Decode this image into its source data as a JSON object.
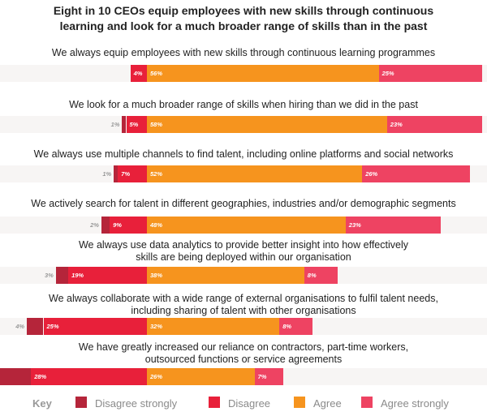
{
  "title_line1": "Eight in 10 CEOs equip employees with new skills through continuous",
  "title_line2": "learning and look for a much broader range of skills than in the past",
  "colors": {
    "disagree_strongly": "#b5253a",
    "disagree": "#e8203a",
    "agree": "#f6941e",
    "agree_strongly": "#ee4362",
    "track": "#f7f5f4"
  },
  "legend": {
    "title": "Key",
    "items": [
      {
        "key": "disagree_strongly",
        "label": "Disagree strongly"
      },
      {
        "key": "disagree",
        "label": "Disagree"
      },
      {
        "key": "agree",
        "label": "Agree"
      },
      {
        "key": "agree_strongly",
        "label": "Agree strongly"
      }
    ]
  },
  "chart_data": {
    "type": "bar",
    "orientation": "horizontal-diverging",
    "series": [
      {
        "key": "disagree_strongly",
        "name": "Disagree strongly"
      },
      {
        "key": "disagree",
        "name": "Disagree"
      },
      {
        "key": "agree",
        "name": "Agree"
      },
      {
        "key": "agree_strongly",
        "name": "Agree strongly"
      }
    ],
    "rows": [
      {
        "label": [
          "We always equip employees with new skills through continuous learning programmes"
        ],
        "values": {
          "disagree_strongly": 0,
          "disagree": 4,
          "agree": 56,
          "agree_strongly": 25
        },
        "labels": {
          "disagree_strongly": "",
          "disagree": "4%",
          "agree": "56%",
          "agree_strongly": "25%"
        }
      },
      {
        "label": [
          "We look for a much broader range of skills when hiring than we did in the past"
        ],
        "values": {
          "disagree_strongly": 1,
          "disagree": 5,
          "agree": 58,
          "agree_strongly": 23
        },
        "labels": {
          "disagree_strongly": "1%",
          "disagree": "5%",
          "agree": "58%",
          "agree_strongly": "23%"
        }
      },
      {
        "label": [
          "We always use multiple channels to find talent, including online platforms and social networks"
        ],
        "values": {
          "disagree_strongly": 1,
          "disagree": 7,
          "agree": 52,
          "agree_strongly": 26
        },
        "labels": {
          "disagree_strongly": "1%",
          "disagree": "7%",
          "agree": "52%",
          "agree_strongly": "26%"
        }
      },
      {
        "label": [
          "We actively search for talent in different geographies, industries and/or demographic segments"
        ],
        "values": {
          "disagree_strongly": 2,
          "disagree": 9,
          "agree": 48,
          "agree_strongly": 23
        },
        "labels": {
          "disagree_strongly": "2%",
          "disagree": "9%",
          "agree": "48%",
          "agree_strongly": "23%"
        }
      },
      {
        "label": [
          "We always use data analytics to provide better insight into how effectively",
          "skills are being deployed within our organisation"
        ],
        "values": {
          "disagree_strongly": 3,
          "disagree": 19,
          "agree": 38,
          "agree_strongly": 8
        },
        "labels": {
          "disagree_strongly": "3%",
          "disagree": "19%",
          "agree": "38%",
          "agree_strongly": "8%"
        }
      },
      {
        "label": [
          "We always collaborate with a wide range of external organisations to fulfil talent needs,",
          "including sharing of talent with other organisations"
        ],
        "values": {
          "disagree_strongly": 4,
          "disagree": 25,
          "agree": 32,
          "agree_strongly": 8
        },
        "labels": {
          "disagree_strongly": "4%",
          "disagree": "25%",
          "agree": "32%",
          "agree_strongly": "8%"
        }
      },
      {
        "label": [
          "We have greatly increased our reliance on contractors, part-time workers,",
          "outsourced functions or service agreements"
        ],
        "values": {
          "disagree_strongly": 9,
          "disagree": 28,
          "agree": 26,
          "agree_strongly": 7
        },
        "labels": {
          "disagree_strongly": "9%",
          "disagree": "28%",
          "agree": "26%",
          "agree_strongly": "7%"
        }
      }
    ]
  }
}
